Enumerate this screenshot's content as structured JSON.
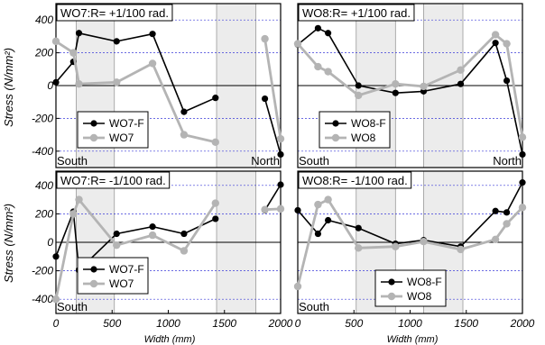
{
  "figure": {
    "ylabel": "Stress (N/mm²)",
    "xlabel": "Width (mm)",
    "colors": {
      "F": "#000000",
      "B": "#b4b4b4",
      "band": "#ececec",
      "grid": "#3a3ad8"
    }
  },
  "chart_data": [
    {
      "type": "line",
      "title": "WO7:R= +1/100 rad.",
      "xlim": [
        0,
        2000
      ],
      "ylim": [
        -500,
        500
      ],
      "x_ticks": [],
      "y_ticks": [
        400,
        200,
        0,
        -200,
        -400
      ],
      "bands": [
        [
          180,
          520
        ],
        [
          1430,
          1780
        ]
      ],
      "corner_left": "South",
      "corner_right": "North",
      "legend_pos": "bottom-left",
      "series": [
        {
          "name": "WO7-F",
          "style": "F",
          "segments": [
            [
              [
                0,
                20
              ],
              [
                155,
                145
              ],
              [
                205,
                320
              ],
              [
                540,
                270
              ],
              [
                860,
                315
              ],
              [
                1140,
                -160
              ],
              [
                1420,
                -75
              ]
            ],
            [
              [
                1860,
                -80
              ],
              [
                2000,
                -420
              ]
            ]
          ]
        },
        {
          "name": "WO7",
          "style": "B",
          "segments": [
            [
              [
                0,
                270
              ],
              [
                155,
                200
              ],
              [
                205,
                10
              ],
              [
                540,
                20
              ],
              [
                860,
                135
              ],
              [
                1140,
                -300
              ],
              [
                1420,
                -345
              ]
            ],
            [
              [
                1860,
                285
              ],
              [
                2000,
                -325
              ]
            ]
          ]
        }
      ]
    },
    {
      "type": "line",
      "title": "WO8:R= +1/100 rad.",
      "xlim": [
        0,
        2000
      ],
      "ylim": [
        -500,
        500
      ],
      "x_ticks": [],
      "y_ticks": [],
      "bands": [
        [
          520,
          870
        ],
        [
          1120,
          1470
        ]
      ],
      "corner_left": "South",
      "corner_right": "North",
      "legend_pos": "bottom-left",
      "series": [
        {
          "name": "WO8-F",
          "style": "F",
          "segments": [
            [
              [
                0,
                250
              ],
              [
                180,
                350
              ],
              [
                270,
                320
              ],
              [
                540,
                0
              ],
              [
                870,
                -45
              ],
              [
                1120,
                -35
              ],
              [
                1450,
                10
              ],
              [
                1760,
                260
              ],
              [
                1860,
                30
              ],
              [
                2000,
                -420
              ]
            ]
          ]
        },
        {
          "name": "WO8",
          "style": "B",
          "segments": [
            [
              [
                0,
                255
              ],
              [
                180,
                115
              ],
              [
                270,
                85
              ],
              [
                540,
                -60
              ],
              [
                870,
                10
              ],
              [
                1120,
                -5
              ],
              [
                1450,
                95
              ],
              [
                1760,
                310
              ],
              [
                1860,
                255
              ],
              [
                2000,
                -315
              ]
            ]
          ]
        }
      ]
    },
    {
      "type": "line",
      "title": "WO7:R= -1/100 rad.",
      "xlim": [
        0,
        2000
      ],
      "ylim": [
        -500,
        500
      ],
      "x_ticks": [
        0,
        500,
        1000,
        1500,
        2000
      ],
      "y_ticks": [
        400,
        200,
        0,
        -200,
        -400
      ],
      "bands": [
        [
          180,
          520
        ],
        [
          1430,
          1780
        ]
      ],
      "corner_left": "South",
      "corner_right": "",
      "legend_pos": "bottom-left",
      "series": [
        {
          "name": "WO7-F",
          "style": "F",
          "segments": [
            [
              [
                0,
                -100
              ],
              [
                155,
                215
              ],
              [
                205,
                -195
              ],
              [
                540,
                60
              ],
              [
                860,
                110
              ],
              [
                1140,
                60
              ],
              [
                1420,
                165
              ]
            ],
            [
              [
                1860,
                225
              ],
              [
                2000,
                405
              ]
            ]
          ]
        },
        {
          "name": "WO7",
          "style": "B",
          "segments": [
            [
              [
                0,
                -400
              ],
              [
                155,
                200
              ],
              [
                205,
                300
              ],
              [
                540,
                -20
              ],
              [
                860,
                50
              ],
              [
                1140,
                -60
              ],
              [
                1420,
                275
              ]
            ],
            [
              [
                1860,
                230
              ],
              [
                2000,
                235
              ]
            ]
          ]
        }
      ]
    },
    {
      "type": "line",
      "title": "WO8:R= -1/100 rad.",
      "xlim": [
        0,
        2000
      ],
      "ylim": [
        -500,
        500
      ],
      "x_ticks": [
        0,
        500,
        1000,
        1500,
        2000
      ],
      "y_ticks": [],
      "bands": [
        [
          520,
          870
        ],
        [
          1120,
          1470
        ]
      ],
      "corner_left": "South",
      "corner_right": "",
      "legend_pos": "bottom-center",
      "series": [
        {
          "name": "WO8-F",
          "style": "F",
          "segments": [
            [
              [
                0,
                225
              ],
              [
                180,
                60
              ],
              [
                270,
                155
              ],
              [
                540,
                100
              ],
              [
                870,
                -10
              ],
              [
                1120,
                15
              ],
              [
                1450,
                -30
              ],
              [
                1760,
                220
              ],
              [
                1860,
                210
              ],
              [
                2000,
                420
              ]
            ]
          ]
        },
        {
          "name": "WO8",
          "style": "B",
          "segments": [
            [
              [
                0,
                -310
              ],
              [
                180,
                265
              ],
              [
                270,
                300
              ],
              [
                540,
                -40
              ],
              [
                870,
                -30
              ],
              [
                1120,
                5
              ],
              [
                1450,
                -50
              ],
              [
                1760,
                20
              ],
              [
                1860,
                130
              ],
              [
                2000,
                245
              ]
            ]
          ]
        }
      ]
    }
  ]
}
